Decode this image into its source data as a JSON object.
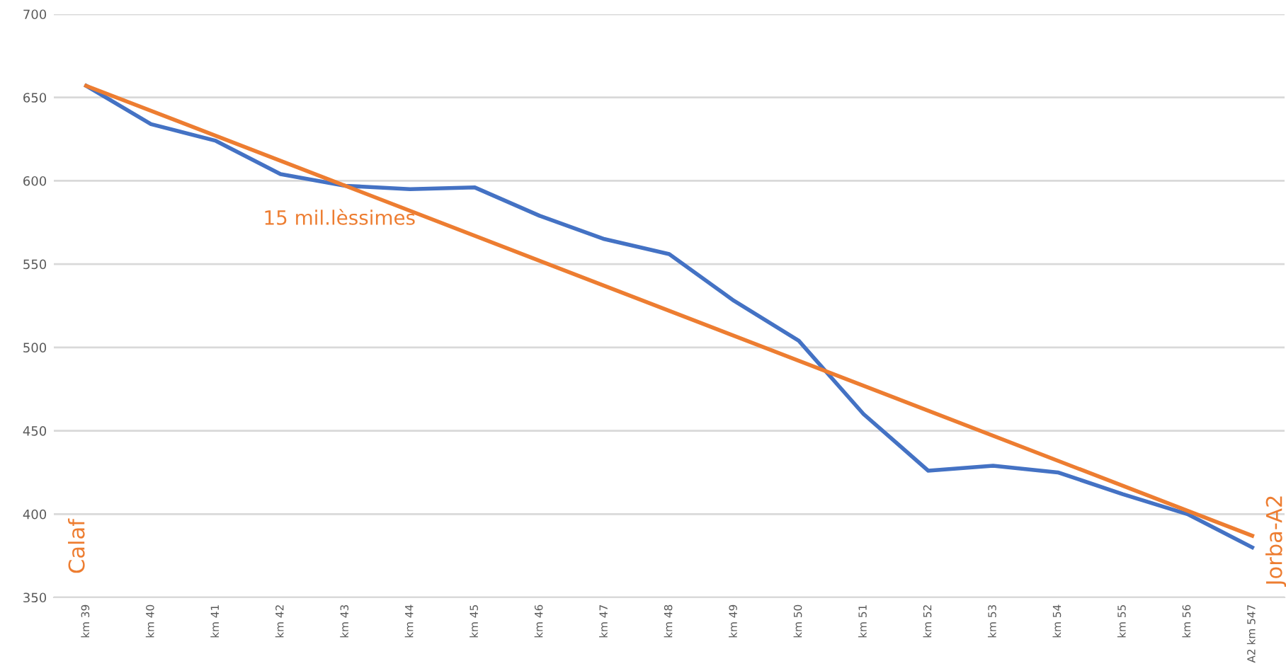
{
  "chart_data": {
    "type": "line",
    "categories": [
      "km 39",
      "km 40",
      "km 41",
      "km 42",
      "km 43",
      "km 44",
      "km 45",
      "km 46",
      "km 47",
      "km 48",
      "km 49",
      "km 50",
      "km 51",
      "km 52",
      "km 53",
      "km 54",
      "km 55",
      "km 56",
      "A2 km 547"
    ],
    "series": [
      {
        "color": "#4472c4",
        "values": [
          657,
          634,
          624,
          604,
          597,
          595,
          596,
          579,
          565,
          556,
          528,
          504,
          460,
          426,
          429,
          425,
          412,
          400,
          380
        ]
      },
      {
        "color": "#ed7d31",
        "x": [
          "km 39",
          "A2 km 547"
        ],
        "values": [
          657,
          387
        ]
      }
    ],
    "ylim": [
      350,
      700
    ],
    "yticks": [
      350,
      400,
      450,
      500,
      550,
      600,
      650,
      700
    ],
    "grid": "y",
    "legend": false,
    "marker": "none",
    "line_style": "solid",
    "annotations": [
      "15 mil.lèssimes",
      "Calaf",
      "Jorba-A2"
    ]
  }
}
